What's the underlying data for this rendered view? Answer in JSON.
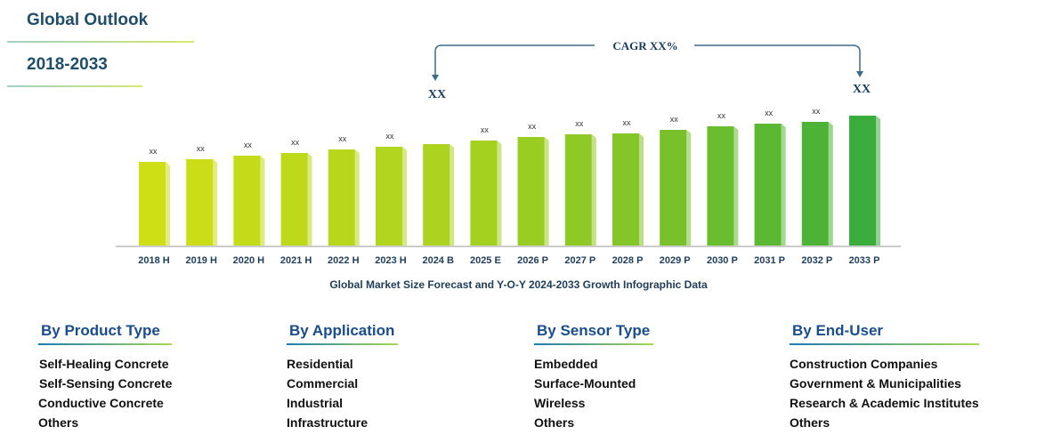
{
  "header": {
    "title": "Global Outlook",
    "period": "2018-2033"
  },
  "cagr": {
    "label": "CAGR XX%",
    "start_value": "XX",
    "end_value": "XX"
  },
  "caption": "Global Market Size Forecast and Y-O-Y 2024-2033 Growth Infographic Data",
  "chart_data": {
    "type": "bar",
    "categories": [
      "2018 H",
      "2019 H",
      "2020 H",
      "2021 H",
      "2022 H",
      "2023 H",
      "2024 B",
      "2025 E",
      "2026 P",
      "2027 P",
      "2028 P",
      "2029 P",
      "2030 P",
      "2031 P",
      "2032 P",
      "2033 P"
    ],
    "values": [
      94,
      97,
      101,
      104,
      108,
      111,
      114,
      118,
      122,
      125,
      126,
      130,
      134,
      137,
      139,
      146
    ],
    "data_labels": [
      "xx",
      "xx",
      "xx",
      "xx",
      "xx",
      "xx",
      "",
      "xx",
      "xx",
      "xx",
      "xx",
      "xx",
      "xx",
      "xx",
      "xx",
      ""
    ],
    "grid": false,
    "colors": [
      "#cfdf16",
      "#cadd17",
      "#c4db18",
      "#bed91a",
      "#b8d71b",
      "#b2d51d",
      "#acd31f",
      "#a4d020",
      "#9acd22",
      "#8fc925",
      "#84c528",
      "#78c12b",
      "#6abd2f",
      "#5bb833",
      "#4cb337",
      "#3aad3c"
    ]
  },
  "segments": [
    {
      "title": "By Product Type",
      "items": [
        "Self-Healing Concrete",
        "Self-Sensing Concrete",
        "Conductive Concrete",
        "Others"
      ]
    },
    {
      "title": "By Application",
      "items": [
        "Residential",
        "Commercial",
        "Industrial",
        "Infrastructure"
      ]
    },
    {
      "title": "By Sensor Type",
      "items": [
        "Embedded",
        "Surface-Mounted",
        "Wireless",
        "Others"
      ]
    },
    {
      "title": "By End-User",
      "items": [
        "Construction Companies",
        "Government & Municipalities",
        "Research & Academic Institutes",
        "Others"
      ]
    }
  ]
}
